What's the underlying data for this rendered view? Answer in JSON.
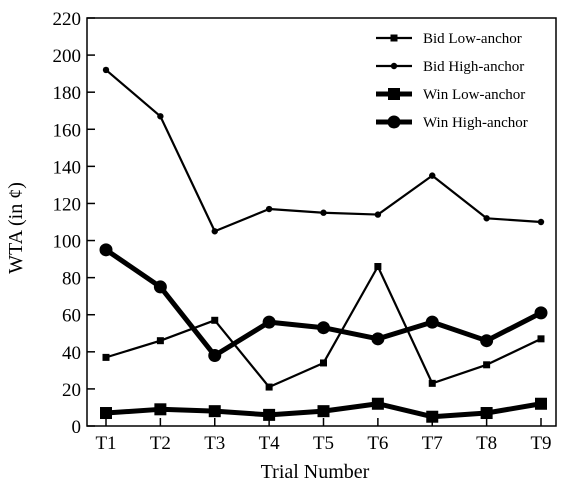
{
  "chart_data": {
    "type": "line",
    "xlabel": "Trial Number",
    "ylabel": "WTA (in ¢)",
    "ylim": [
      0,
      220
    ],
    "yticks": [
      0,
      20,
      40,
      60,
      80,
      100,
      120,
      140,
      160,
      180,
      200,
      220
    ],
    "categories": [
      "T1",
      "T2",
      "T3",
      "T4",
      "T5",
      "T6",
      "T7",
      "T8",
      "T9"
    ],
    "grid": false,
    "legend": {
      "placement": "top-right"
    },
    "series": [
      {
        "name": "Bid Low-anchor",
        "marker": "square",
        "weight": "thin",
        "values": [
          37,
          46,
          57,
          21,
          34,
          86,
          23,
          33,
          47
        ]
      },
      {
        "name": "Bid High-anchor",
        "marker": "circle",
        "weight": "thin",
        "values": [
          192,
          167,
          105,
          117,
          115,
          114,
          135,
          112,
          110
        ]
      },
      {
        "name": "Win Low-anchor",
        "marker": "square",
        "weight": "thick",
        "values": [
          7,
          9,
          8,
          6,
          8,
          12,
          5,
          7,
          12
        ]
      },
      {
        "name": "Win High-anchor",
        "marker": "circle",
        "weight": "thick",
        "values": [
          95,
          75,
          38,
          56,
          53,
          47,
          56,
          46,
          61
        ]
      }
    ]
  }
}
